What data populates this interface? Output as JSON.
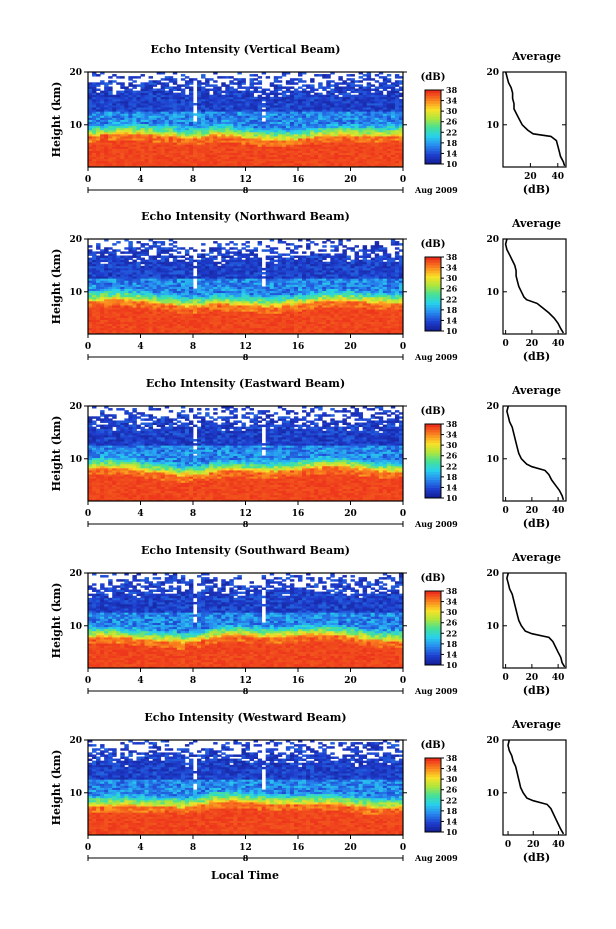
{
  "figure": {
    "xlabel": "Local Time",
    "date_label": "Aug 2009",
    "date_tick": "8"
  },
  "chart_data": [
    {
      "type": "heatmap",
      "title": "Echo Intensity (Vertical Beam)",
      "beam": "vertical",
      "xlabel": "",
      "ylabel": "Height (km)",
      "xlim": [
        0,
        24
      ],
      "ylim": [
        2,
        20
      ],
      "xticks": [
        "0",
        "4",
        "8",
        "12",
        "16",
        "20",
        "0"
      ],
      "yticks": [
        "10",
        "20"
      ],
      "colorbar": {
        "unit": "(dB)",
        "ticks": [
          "10",
          "14",
          "18",
          "22",
          "26",
          "30",
          "34",
          "38"
        ],
        "range": [
          10,
          38
        ]
      },
      "average_profile": {
        "title": "Average",
        "xlabel": "(dB)",
        "xticks": [
          "20",
          "40"
        ],
        "xlim": [
          0,
          46
        ],
        "height_km": [
          2.2,
          3,
          4,
          5,
          6,
          7,
          7.8,
          8.3,
          9,
          10,
          11,
          12,
          13,
          14,
          15,
          16,
          17,
          18,
          19,
          20
        ],
        "db": [
          45,
          44,
          42,
          41,
          40,
          39,
          35,
          22,
          18,
          14,
          12,
          10,
          8,
          8,
          7,
          7,
          6,
          4,
          3,
          2
        ]
      }
    },
    {
      "type": "heatmap",
      "title": "Echo Intensity (Northward Beam)",
      "beam": "northward",
      "xlabel": "",
      "ylabel": "Height (km)",
      "xlim": [
        0,
        24
      ],
      "ylim": [
        2,
        20
      ],
      "xticks": [
        "0",
        "4",
        "8",
        "12",
        "16",
        "20",
        "0"
      ],
      "yticks": [
        "10",
        "20"
      ],
      "colorbar": {
        "unit": "(dB)",
        "ticks": [
          "10",
          "14",
          "18",
          "22",
          "26",
          "30",
          "34",
          "38"
        ],
        "range": [
          10,
          38
        ]
      },
      "average_profile": {
        "title": "Average",
        "xlabel": "(dB)",
        "xticks": [
          "0",
          "20",
          "40"
        ],
        "xlim": [
          -2,
          46
        ],
        "height_km": [
          2.2,
          3,
          4,
          5,
          6,
          7,
          7.8,
          8.5,
          9,
          10,
          11,
          12,
          13,
          14,
          15,
          16,
          17,
          18,
          19,
          20
        ],
        "db": [
          44,
          42,
          40,
          37,
          33,
          28,
          24,
          16,
          14,
          12,
          10,
          9,
          8,
          8,
          7,
          5,
          3,
          1,
          0,
          1
        ]
      }
    },
    {
      "type": "heatmap",
      "title": "Echo Intensity (Eastward Beam)",
      "beam": "eastward",
      "xlabel": "",
      "ylabel": "Height (km)",
      "xlim": [
        0,
        24
      ],
      "ylim": [
        2,
        20
      ],
      "xticks": [
        "0",
        "4",
        "8",
        "12",
        "16",
        "20",
        "0"
      ],
      "yticks": [
        "10",
        "20"
      ],
      "colorbar": {
        "unit": "(dB)",
        "ticks": [
          "10",
          "14",
          "18",
          "22",
          "26",
          "30",
          "34",
          "38"
        ],
        "range": [
          10,
          38
        ]
      },
      "average_profile": {
        "title": "Average",
        "xlabel": "(dB)",
        "xticks": [
          "0",
          "20",
          "40"
        ],
        "xlim": [
          -2,
          46
        ],
        "height_km": [
          2.2,
          3,
          4,
          5,
          6,
          7,
          7.8,
          8.5,
          9,
          10,
          11,
          12,
          13,
          14,
          15,
          16,
          17,
          18,
          19,
          20
        ],
        "db": [
          44,
          43,
          41,
          38,
          35,
          33,
          30,
          20,
          16,
          12,
          10,
          9,
          8,
          7,
          6,
          5,
          3,
          2,
          1,
          2
        ]
      }
    },
    {
      "type": "heatmap",
      "title": "Echo Intensity (Southward Beam)",
      "beam": "southward",
      "xlabel": "",
      "ylabel": "Height (km)",
      "xlim": [
        0,
        24
      ],
      "ylim": [
        2,
        20
      ],
      "xticks": [
        "0",
        "4",
        "8",
        "12",
        "16",
        "20",
        "0"
      ],
      "yticks": [
        "10",
        "20"
      ],
      "colorbar": {
        "unit": "(dB)",
        "ticks": [
          "10",
          "14",
          "18",
          "22",
          "26",
          "30",
          "34",
          "38"
        ],
        "range": [
          10,
          38
        ]
      },
      "average_profile": {
        "title": "Average",
        "xlabel": "(dB)",
        "xticks": [
          "0",
          "20",
          "40"
        ],
        "xlim": [
          -2,
          46
        ],
        "height_km": [
          2.2,
          3,
          4,
          5,
          6,
          7,
          7.8,
          8.5,
          9,
          10,
          11,
          12,
          13,
          14,
          15,
          16,
          17,
          18,
          19,
          20
        ],
        "db": [
          45,
          43,
          42,
          40,
          38,
          36,
          33,
          20,
          15,
          12,
          10,
          9,
          8,
          7,
          6,
          5,
          3,
          2,
          1,
          2
        ]
      }
    },
    {
      "type": "heatmap",
      "title": "Echo Intensity (Westward Beam)",
      "beam": "westward",
      "xlabel": "",
      "ylabel": "Height (km)",
      "xlim": [
        0,
        24
      ],
      "ylim": [
        2,
        20
      ],
      "xticks": [
        "0",
        "4",
        "8",
        "12",
        "16",
        "20",
        "0"
      ],
      "yticks": [
        "10",
        "20"
      ],
      "colorbar": {
        "unit": "(dB)",
        "ticks": [
          "10",
          "14",
          "18",
          "22",
          "26",
          "30",
          "34",
          "38"
        ],
        "range": [
          10,
          38
        ]
      },
      "average_profile": {
        "title": "Average",
        "xlabel": "(dB)",
        "xticks": [
          "0",
          "20",
          "40"
        ],
        "xlim": [
          -4,
          46
        ],
        "height_km": [
          2.2,
          3,
          4,
          5,
          6,
          7,
          7.8,
          8.5,
          9,
          10,
          11,
          12,
          13,
          14,
          15,
          16,
          17,
          18,
          19,
          20
        ],
        "db": [
          44,
          42,
          40,
          38,
          36,
          34,
          31,
          20,
          15,
          12,
          10,
          9,
          8,
          7,
          6,
          4,
          3,
          1,
          0,
          1
        ]
      }
    }
  ]
}
